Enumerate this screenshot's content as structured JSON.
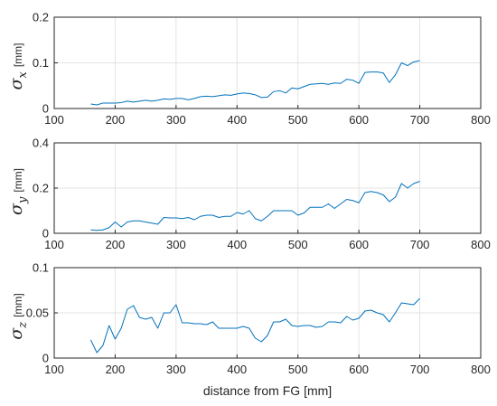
{
  "colors": {
    "line": "#0072BD",
    "grid": "#e3e3e3",
    "axis": "#262626",
    "background": "#ffffff"
  },
  "chart_data": [
    {
      "type": "line",
      "ylabel": {
        "symbol": "σ",
        "subscript": "x",
        "unit": "[mm]"
      },
      "xlabel": "",
      "xlim": [
        100,
        800
      ],
      "ylim": [
        0,
        0.2
      ],
      "xticks": [
        "100",
        "200",
        "300",
        "400",
        "500",
        "600",
        "700",
        "800"
      ],
      "yticks": [
        "0",
        "0.1",
        "0.2"
      ],
      "grid": true,
      "series": [
        {
          "x": [
            160,
            170,
            180,
            190,
            200,
            210,
            220,
            230,
            240,
            250,
            260,
            270,
            280,
            290,
            300,
            310,
            320,
            330,
            340,
            350,
            360,
            370,
            380,
            390,
            400,
            410,
            420,
            430,
            440,
            450,
            460,
            470,
            480,
            490,
            500,
            510,
            520,
            530,
            540,
            550,
            560,
            570,
            580,
            590,
            600,
            610,
            620,
            630,
            640,
            650,
            660,
            670,
            680,
            690,
            700
          ],
          "y": [
            0.01,
            0.008,
            0.012,
            0.012,
            0.012,
            0.013,
            0.016,
            0.014,
            0.016,
            0.018,
            0.016,
            0.018,
            0.021,
            0.02,
            0.022,
            0.022,
            0.019,
            0.022,
            0.026,
            0.027,
            0.026,
            0.028,
            0.03,
            0.029,
            0.032,
            0.034,
            0.033,
            0.03,
            0.024,
            0.025,
            0.037,
            0.039,
            0.034,
            0.045,
            0.043,
            0.048,
            0.053,
            0.054,
            0.055,
            0.053,
            0.056,
            0.055,
            0.064,
            0.062,
            0.055,
            0.079,
            0.08,
            0.08,
            0.078,
            0.057,
            0.074,
            0.1,
            0.094,
            0.102,
            0.105
          ]
        }
      ]
    },
    {
      "type": "line",
      "ylabel": {
        "symbol": "σ",
        "subscript": "y",
        "unit": "[mm]"
      },
      "xlabel": "",
      "xlim": [
        100,
        800
      ],
      "ylim": [
        0,
        0.4
      ],
      "xticks": [
        "100",
        "200",
        "300",
        "400",
        "500",
        "600",
        "700",
        "800"
      ],
      "yticks": [
        "0",
        "0.2",
        "0.4"
      ],
      "grid": true,
      "series": [
        {
          "x": [
            160,
            170,
            180,
            190,
            200,
            210,
            220,
            230,
            240,
            250,
            260,
            270,
            280,
            290,
            300,
            310,
            320,
            330,
            340,
            350,
            360,
            370,
            380,
            390,
            400,
            410,
            420,
            430,
            440,
            450,
            460,
            470,
            480,
            490,
            500,
            510,
            520,
            530,
            540,
            550,
            560,
            570,
            580,
            590,
            600,
            610,
            620,
            630,
            640,
            650,
            660,
            670,
            680,
            690,
            700
          ],
          "y": [
            0.015,
            0.013,
            0.015,
            0.025,
            0.05,
            0.028,
            0.05,
            0.055,
            0.055,
            0.05,
            0.045,
            0.04,
            0.07,
            0.068,
            0.068,
            0.065,
            0.07,
            0.06,
            0.075,
            0.08,
            0.08,
            0.07,
            0.075,
            0.075,
            0.092,
            0.085,
            0.1,
            0.065,
            0.055,
            0.075,
            0.1,
            0.1,
            0.1,
            0.1,
            0.08,
            0.09,
            0.115,
            0.115,
            0.115,
            0.13,
            0.11,
            0.13,
            0.15,
            0.145,
            0.135,
            0.18,
            0.185,
            0.18,
            0.17,
            0.14,
            0.16,
            0.22,
            0.2,
            0.22,
            0.23
          ]
        }
      ]
    },
    {
      "type": "line",
      "ylabel": {
        "symbol": "σ",
        "subscript": "z",
        "unit": "[mm]"
      },
      "xlabel": "distance from FG [mm]",
      "xlim": [
        100,
        800
      ],
      "ylim": [
        0,
        0.1
      ],
      "xticks": [
        "100",
        "200",
        "300",
        "400",
        "500",
        "600",
        "700",
        "800"
      ],
      "yticks": [
        "0",
        "0.05",
        "0.1"
      ],
      "grid": true,
      "series": [
        {
          "x": [
            160,
            170,
            180,
            190,
            200,
            210,
            220,
            230,
            240,
            250,
            260,
            270,
            280,
            290,
            300,
            310,
            320,
            330,
            340,
            350,
            360,
            370,
            380,
            390,
            400,
            410,
            420,
            430,
            440,
            450,
            460,
            470,
            480,
            490,
            500,
            510,
            520,
            530,
            540,
            550,
            560,
            570,
            580,
            590,
            600,
            610,
            620,
            630,
            640,
            650,
            660,
            670,
            680,
            690,
            700
          ],
          "y": [
            0.02,
            0.006,
            0.014,
            0.036,
            0.021,
            0.033,
            0.054,
            0.058,
            0.045,
            0.043,
            0.045,
            0.033,
            0.05,
            0.05,
            0.059,
            0.039,
            0.039,
            0.038,
            0.038,
            0.037,
            0.04,
            0.033,
            0.033,
            0.033,
            0.033,
            0.035,
            0.033,
            0.022,
            0.018,
            0.025,
            0.04,
            0.04,
            0.043,
            0.036,
            0.035,
            0.036,
            0.036,
            0.034,
            0.035,
            0.04,
            0.04,
            0.039,
            0.046,
            0.042,
            0.044,
            0.052,
            0.053,
            0.05,
            0.048,
            0.04,
            0.05,
            0.061,
            0.06,
            0.059,
            0.066
          ]
        }
      ]
    }
  ]
}
